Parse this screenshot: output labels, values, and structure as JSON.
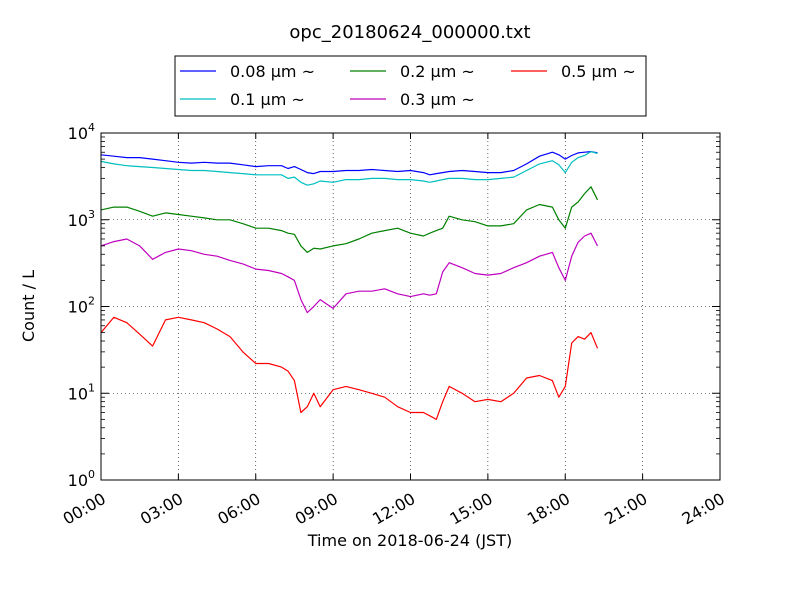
{
  "chart_data": {
    "type": "line",
    "title": "opc_20180624_000000.txt",
    "xlabel": "Time on 2018-06-24 (JST)",
    "ylabel": "Count / L",
    "x_unit": "hour of day",
    "xlim": [
      0,
      24
    ],
    "ylim": [
      1,
      10000
    ],
    "y_scale": "log",
    "grid": true,
    "legend_position": "top-center",
    "x_tick_labels": [
      "00:00",
      "03:00",
      "06:00",
      "09:00",
      "12:00",
      "15:00",
      "18:00",
      "21:00",
      "24:00"
    ],
    "x_tick_values": [
      0,
      3,
      6,
      9,
      12,
      15,
      18,
      21,
      24
    ],
    "y_tick_values": [
      1,
      10,
      100,
      1000,
      10000
    ],
    "y_tick_labels": [
      {
        "base": "10",
        "exp": "0"
      },
      {
        "base": "10",
        "exp": "1"
      },
      {
        "base": "10",
        "exp": "2"
      },
      {
        "base": "10",
        "exp": "3"
      },
      {
        "base": "10",
        "exp": "4"
      }
    ],
    "x": [
      0.0,
      0.5,
      1.0,
      1.5,
      2.0,
      2.5,
      3.0,
      3.5,
      4.0,
      4.5,
      5.0,
      5.5,
      6.0,
      6.5,
      7.0,
      7.25,
      7.5,
      7.75,
      8.0,
      8.25,
      8.5,
      9.0,
      9.5,
      10.0,
      10.5,
      11.0,
      11.5,
      12.0,
      12.5,
      12.75,
      13.0,
      13.25,
      13.5,
      14.0,
      14.5,
      15.0,
      15.5,
      16.0,
      16.5,
      17.0,
      17.5,
      17.75,
      18.0,
      18.25,
      18.5,
      18.75,
      19.0,
      19.25
    ],
    "series": [
      {
        "name": "0.08 μm ~",
        "color": "#0000ff",
        "values": [
          5600,
          5400,
          5200,
          5200,
          5000,
          4800,
          4600,
          4500,
          4600,
          4500,
          4500,
          4300,
          4100,
          4200,
          4200,
          3900,
          4100,
          3800,
          3500,
          3400,
          3600,
          3600,
          3700,
          3700,
          3800,
          3700,
          3600,
          3700,
          3500,
          3300,
          3400,
          3500,
          3600,
          3700,
          3600,
          3500,
          3500,
          3700,
          4400,
          5400,
          6000,
          5600,
          5000,
          5500,
          5900,
          6000,
          6100,
          5900
        ]
      },
      {
        "name": "0.1 μm ~",
        "color": "#00bfbf",
        "values": [
          4700,
          4400,
          4200,
          4100,
          4000,
          3900,
          3800,
          3700,
          3700,
          3600,
          3500,
          3400,
          3300,
          3300,
          3300,
          3000,
          3100,
          2700,
          2500,
          2600,
          2800,
          2700,
          2900,
          2900,
          3000,
          3000,
          2900,
          2900,
          2800,
          2700,
          2800,
          2900,
          3000,
          3000,
          2900,
          2900,
          3000,
          3100,
          3700,
          4400,
          4800,
          4300,
          3500,
          4600,
          5200,
          5500,
          6100,
          5800
        ]
      },
      {
        "name": "0.2 μm ~",
        "color": "#008000",
        "values": [
          1300,
          1400,
          1400,
          1250,
          1100,
          1200,
          1150,
          1100,
          1050,
          1000,
          1000,
          900,
          800,
          800,
          750,
          700,
          680,
          500,
          420,
          470,
          460,
          500,
          530,
          600,
          700,
          750,
          800,
          700,
          650,
          700,
          750,
          800,
          1100,
          1000,
          950,
          850,
          850,
          900,
          1300,
          1500,
          1400,
          1000,
          800,
          1400,
          1600,
          2000,
          2400,
          1700
        ]
      },
      {
        "name": "0.3 μm ~",
        "color": "#bf00bf",
        "values": [
          500,
          560,
          600,
          500,
          350,
          420,
          460,
          440,
          400,
          380,
          340,
          310,
          270,
          260,
          240,
          220,
          200,
          120,
          85,
          100,
          120,
          95,
          140,
          150,
          150,
          160,
          140,
          130,
          140,
          135,
          140,
          250,
          320,
          280,
          240,
          230,
          240,
          280,
          320,
          380,
          420,
          280,
          200,
          380,
          550,
          650,
          700,
          500
        ]
      },
      {
        "name": "0.5 μm ~",
        "color": "#ff0000",
        "values": [
          50,
          75,
          65,
          48,
          35,
          70,
          75,
          70,
          65,
          55,
          45,
          30,
          22,
          22,
          20,
          18,
          14,
          6,
          7,
          10,
          7,
          11,
          12,
          11,
          10,
          9,
          7,
          6,
          6,
          5.5,
          5,
          8,
          12,
          10,
          8,
          8.5,
          8,
          10,
          15,
          16,
          14,
          9,
          12,
          38,
          45,
          42,
          50,
          33
        ]
      }
    ]
  }
}
